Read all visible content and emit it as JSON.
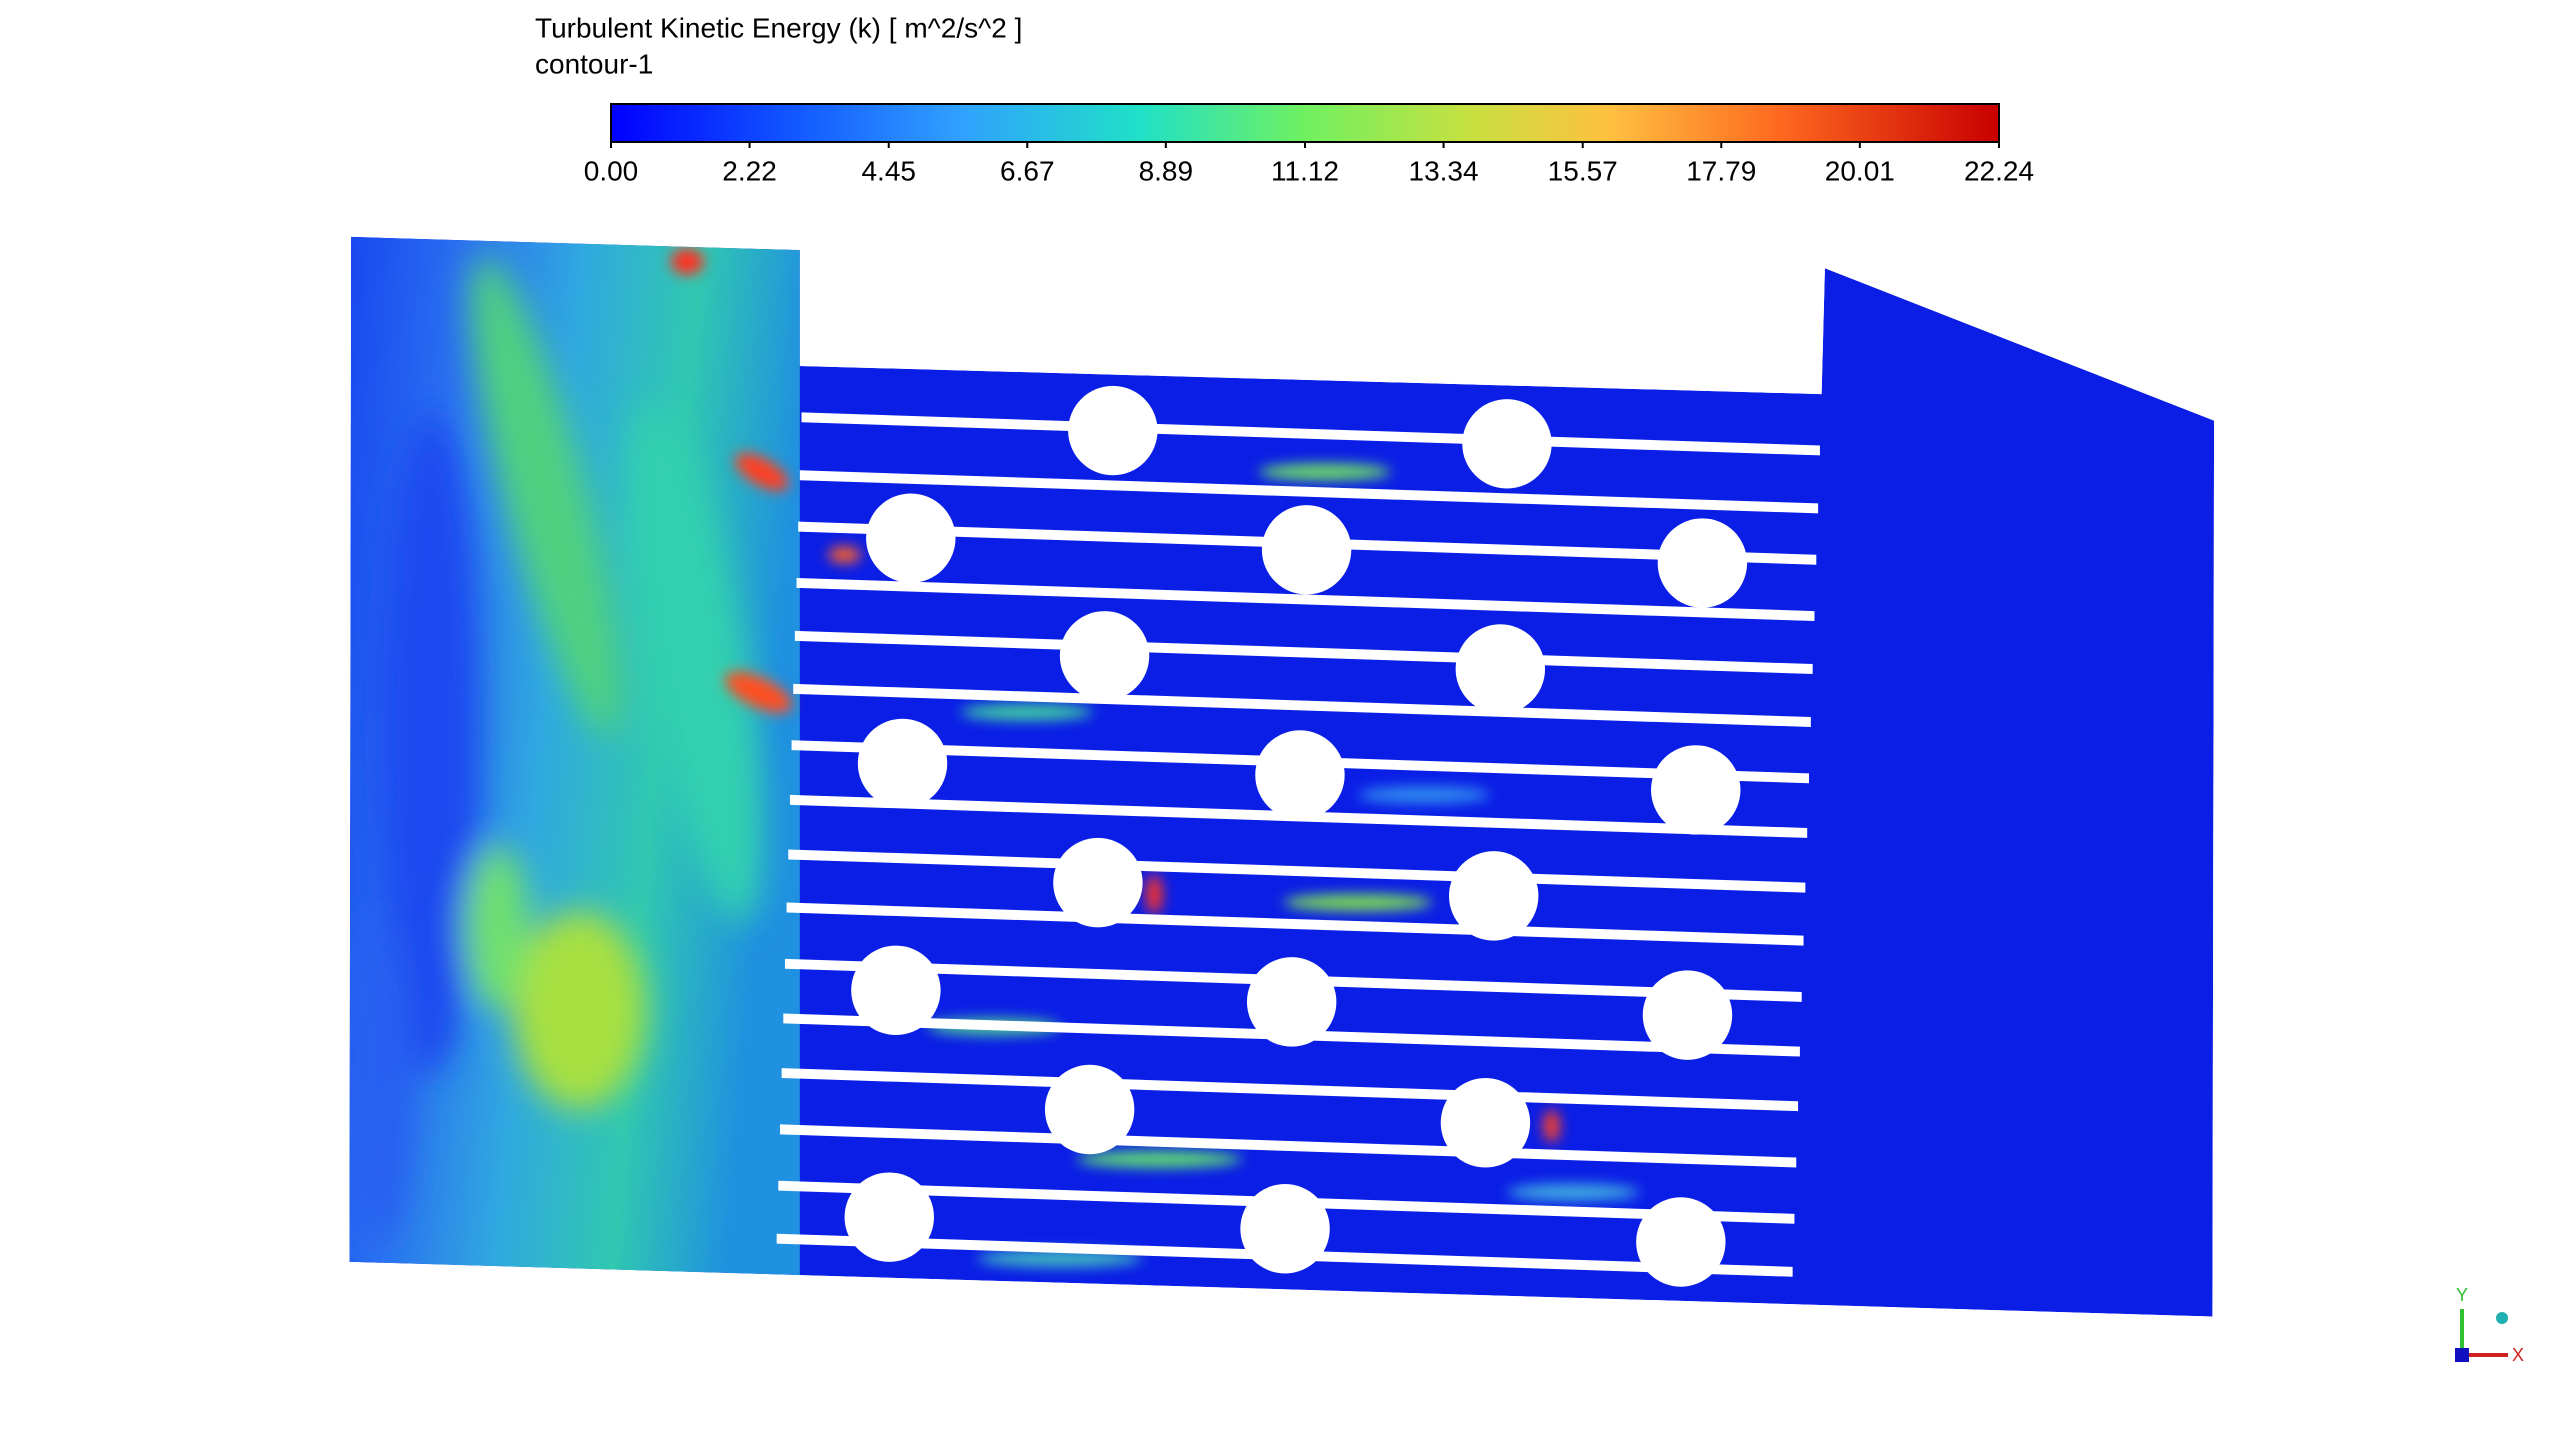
{
  "legend": {
    "title": "Turbulent Kinetic Energy (k) [ m^2/s^2 ]",
    "subtitle": "contour-1",
    "range": [
      0,
      22.24
    ],
    "ticks": [
      {
        "value": 0,
        "label": "0.00"
      },
      {
        "value": 2.22,
        "label": "2.22"
      },
      {
        "value": 4.45,
        "label": "4.45"
      },
      {
        "value": 6.67,
        "label": "6.67"
      },
      {
        "value": 8.89,
        "label": "8.89"
      },
      {
        "value": 11.12,
        "label": "11.12"
      },
      {
        "value": 13.34,
        "label": "13.34"
      },
      {
        "value": 15.57,
        "label": "15.57"
      },
      {
        "value": 17.79,
        "label": "17.79"
      },
      {
        "value": 20.01,
        "label": "20.01"
      },
      {
        "value": 22.24,
        "label": "22.24"
      }
    ]
  },
  "triad": {
    "y": "Y",
    "x": "X"
  }
}
